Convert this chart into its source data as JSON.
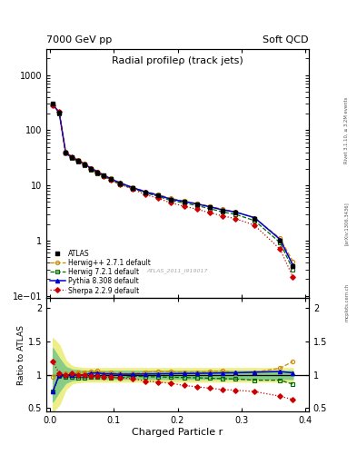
{
  "title": "Radial profileρ (track jets)",
  "header_left": "7000 GeV pp",
  "header_right": "Soft QCD",
  "xlabel": "Charged Particle r",
  "ylabel_ratio": "Ratio to ATLAS",
  "watermark": "ATLAS_2011_I919017",
  "rivet_text": "Rivet 3.1.10, ≥ 3.2M events",
  "arxiv_text": "[arXiv:1306.3436]",
  "mcplots_text": "mcplots.cern.ch",
  "x_data": [
    0.005,
    0.015,
    0.025,
    0.035,
    0.045,
    0.055,
    0.065,
    0.075,
    0.085,
    0.095,
    0.11,
    0.13,
    0.15,
    0.17,
    0.19,
    0.21,
    0.23,
    0.25,
    0.27,
    0.29,
    0.32,
    0.36,
    0.38
  ],
  "atlas_y": [
    300,
    210,
    40,
    32,
    28,
    24,
    20,
    17,
    15,
    13,
    11,
    9,
    7.5,
    6.5,
    5.5,
    5.0,
    4.5,
    4.0,
    3.5,
    3.2,
    2.5,
    1.0,
    0.35
  ],
  "herwig_y": [
    290,
    215,
    41,
    33,
    29,
    25,
    21,
    18,
    15.5,
    13.5,
    11.2,
    9.2,
    7.8,
    6.8,
    5.8,
    5.2,
    4.7,
    4.2,
    3.7,
    3.3,
    2.6,
    1.1,
    0.42
  ],
  "herwig7_y": [
    295,
    205,
    39,
    31,
    27,
    23,
    19.5,
    16.5,
    14.5,
    12.5,
    10.5,
    8.8,
    7.3,
    6.3,
    5.3,
    4.8,
    4.3,
    3.8,
    3.3,
    3.0,
    2.3,
    0.92,
    0.3
  ],
  "pythia_y": [
    295,
    210,
    40,
    32,
    28,
    24,
    20.5,
    17.5,
    15.2,
    13.2,
    11.1,
    9.1,
    7.6,
    6.6,
    5.6,
    5.1,
    4.6,
    4.1,
    3.6,
    3.3,
    2.6,
    1.05,
    0.36
  ],
  "sherpa_y": [
    280,
    215,
    40,
    33,
    28,
    24,
    20,
    17,
    14.8,
    12.8,
    10.5,
    8.5,
    6.8,
    5.8,
    4.8,
    4.2,
    3.7,
    3.2,
    2.8,
    2.5,
    1.9,
    0.7,
    0.22
  ],
  "herwig_ratio": [
    0.97,
    1.02,
    1.02,
    1.03,
    1.04,
    1.04,
    1.05,
    1.06,
    1.03,
    1.04,
    1.02,
    1.02,
    1.04,
    1.05,
    1.05,
    1.04,
    1.04,
    1.05,
    1.06,
    1.03,
    1.04,
    1.1,
    1.2
  ],
  "herwig7_ratio": [
    0.75,
    0.98,
    0.97,
    0.97,
    0.96,
    0.96,
    0.975,
    0.97,
    0.97,
    0.96,
    0.955,
    0.978,
    0.973,
    0.969,
    0.964,
    0.96,
    0.956,
    0.95,
    0.943,
    0.938,
    0.92,
    0.92,
    0.86
  ],
  "pythia_ratio": [
    0.75,
    1.0,
    1.0,
    1.0,
    1.0,
    1.0,
    1.025,
    1.03,
    1.013,
    1.015,
    1.009,
    1.011,
    1.013,
    1.015,
    1.018,
    1.02,
    1.022,
    1.025,
    1.029,
    1.031,
    1.04,
    1.05,
    1.03
  ],
  "sherpa_ratio": [
    1.2,
    1.02,
    1.0,
    1.03,
    1.0,
    1.0,
    0.985,
    0.985,
    0.975,
    0.97,
    0.955,
    0.944,
    0.907,
    0.892,
    0.873,
    0.84,
    0.822,
    0.8,
    0.78,
    0.771,
    0.75,
    0.68,
    0.63
  ],
  "atlas_band_lo": [
    0.6,
    0.75,
    0.88,
    0.92,
    0.93,
    0.94,
    0.94,
    0.94,
    0.94,
    0.94,
    0.94,
    0.94,
    0.94,
    0.94,
    0.94,
    0.94,
    0.94,
    0.94,
    0.94,
    0.94,
    0.94,
    0.94,
    0.94
  ],
  "atlas_band_hi": [
    1.4,
    1.25,
    1.12,
    1.08,
    1.07,
    1.06,
    1.06,
    1.06,
    1.06,
    1.06,
    1.06,
    1.06,
    1.06,
    1.06,
    1.06,
    1.06,
    1.06,
    1.06,
    1.06,
    1.06,
    1.06,
    1.06,
    1.06
  ],
  "yellow_band_lo": [
    0.45,
    0.55,
    0.78,
    0.87,
    0.89,
    0.9,
    0.9,
    0.9,
    0.9,
    0.9,
    0.9,
    0.9,
    0.9,
    0.9,
    0.9,
    0.9,
    0.9,
    0.9,
    0.9,
    0.9,
    0.9,
    0.9,
    0.9
  ],
  "yellow_band_hi": [
    1.55,
    1.45,
    1.22,
    1.13,
    1.11,
    1.1,
    1.1,
    1.1,
    1.1,
    1.1,
    1.1,
    1.1,
    1.1,
    1.1,
    1.1,
    1.1,
    1.1,
    1.1,
    1.1,
    1.1,
    1.1,
    1.1,
    1.1
  ],
  "color_atlas": "#000000",
  "color_herwig": "#cc8800",
  "color_herwig7": "#006600",
  "color_pythia": "#0000cc",
  "color_sherpa": "#cc0000",
  "color_band_green": "#88cc88",
  "color_band_yellow": "#eeee88",
  "ylim_main": [
    0.09,
    3000
  ],
  "ylim_ratio": [
    0.45,
    2.15
  ],
  "xlim": [
    -0.005,
    0.405
  ],
  "xticks": [
    0.0,
    0.1,
    0.2,
    0.3,
    0.4
  ]
}
